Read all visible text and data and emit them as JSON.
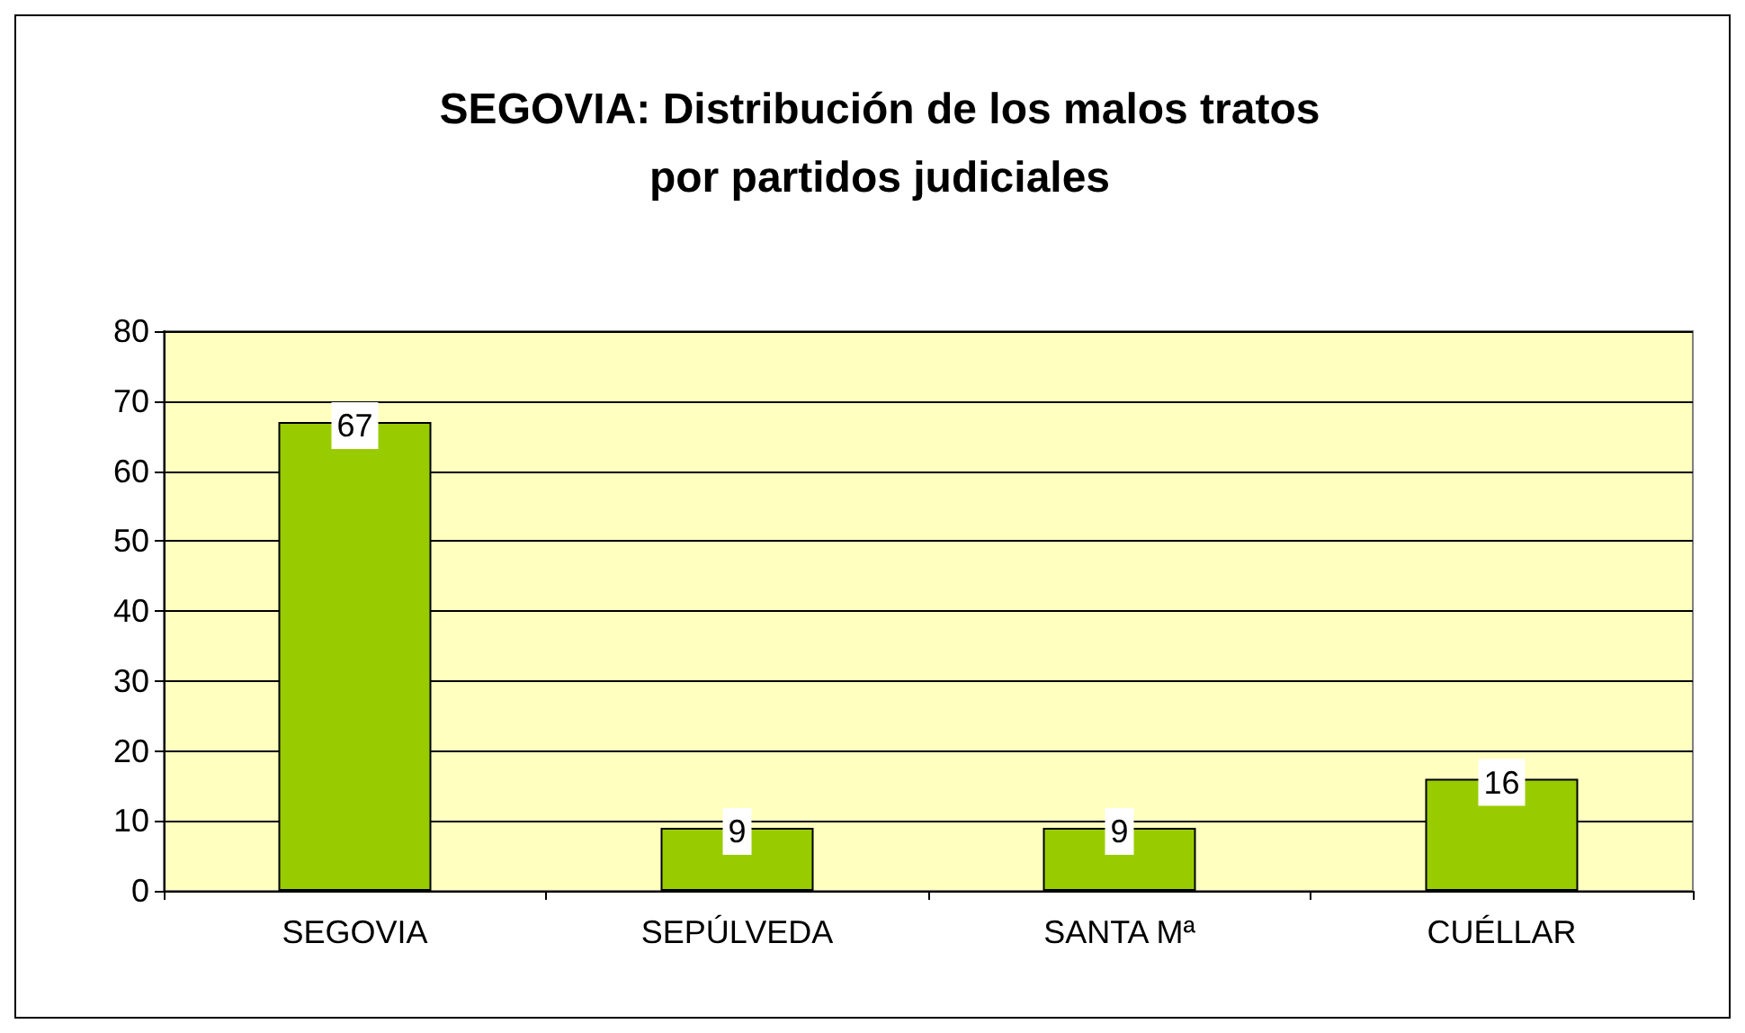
{
  "chart_data": {
    "type": "bar",
    "title": "SEGOVIA: Distribución de los malos tratos\npor partidos judiciales",
    "categories": [
      "SEGOVIA",
      "SEPÚLVEDA",
      "SANTA Mª",
      "CUÉLLAR"
    ],
    "values": [
      67,
      9,
      9,
      16
    ],
    "color": "#99cc00",
    "ylim": [
      0,
      80
    ],
    "yticks": [
      0,
      10,
      20,
      30,
      40,
      50,
      60,
      70,
      80
    ],
    "grid": "y",
    "data_labels": true
  }
}
